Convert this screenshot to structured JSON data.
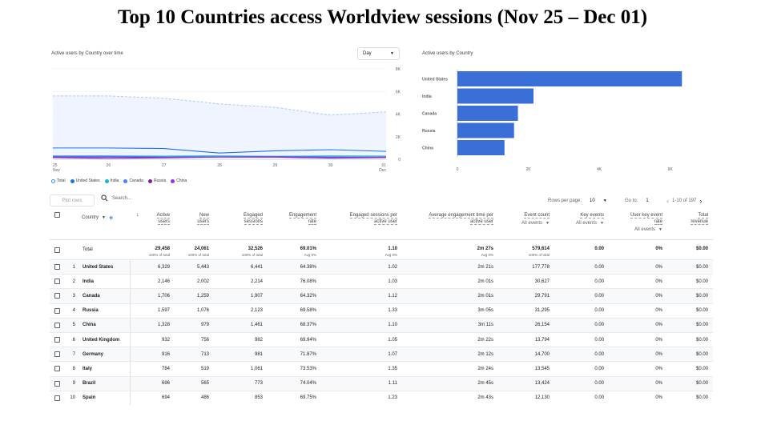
{
  "slide_title": "Top 10 Countries access Worldview sessions (Nov 25 – Dec 01)",
  "line_card": {
    "title": "Active users by Country over time",
    "granularity": "Day",
    "y_ticks": [
      "8K",
      "6K",
      "4K",
      "2K",
      "0"
    ],
    "x_ticks": [
      "25\nNov",
      "26",
      "27",
      "28",
      "29",
      "30",
      "01\nDec"
    ],
    "x_tick_main": [
      "25",
      "26",
      "27",
      "28",
      "29",
      "30",
      "01"
    ],
    "x_tick_sub": [
      "Nov",
      "",
      "",
      "",
      "",
      "",
      "Dec"
    ],
    "legend": [
      {
        "name": "Total",
        "color": "#4285f4",
        "hollow": true
      },
      {
        "name": "United States",
        "color": "#1a73e8",
        "hollow": false
      },
      {
        "name": "India",
        "color": "#12b5cb",
        "hollow": false
      },
      {
        "name": "Canada",
        "color": "#4285f4",
        "hollow": false
      },
      {
        "name": "Russia",
        "color": "#7b1fa2",
        "hollow": false
      },
      {
        "name": "China",
        "color": "#9334e6",
        "hollow": false
      }
    ]
  },
  "chart_data": [
    {
      "type": "area",
      "title": "Active users by Country over time",
      "x": [
        "Nov 25",
        "Nov 26",
        "Nov 27",
        "Nov 28",
        "Nov 29",
        "Nov 30",
        "Dec 01"
      ],
      "ylim": [
        0,
        8000
      ],
      "y_ticks": [
        0,
        2000,
        4000,
        6000,
        8000
      ],
      "series": [
        {
          "name": "Total",
          "color": "#4285f4",
          "values": [
            5600,
            5600,
            5400,
            4900,
            4600,
            3900,
            4200
          ]
        },
        {
          "name": "United States",
          "color": "#1a73e8",
          "values": [
            1000,
            1000,
            950,
            550,
            750,
            850,
            700
          ]
        },
        {
          "name": "India",
          "color": "#12b5cb",
          "values": [
            300,
            300,
            280,
            300,
            260,
            300,
            280
          ]
        },
        {
          "name": "Canada",
          "color": "#4285f4",
          "values": [
            250,
            250,
            200,
            230,
            250,
            220,
            180
          ]
        },
        {
          "name": "Russia",
          "color": "#7b1fa2",
          "values": [
            150,
            80,
            130,
            200,
            190,
            100,
            150
          ]
        },
        {
          "name": "China",
          "color": "#9334e6",
          "values": [
            200,
            190,
            170,
            210,
            210,
            150,
            190
          ]
        }
      ],
      "grid": true,
      "legend": "bottom-left"
    },
    {
      "type": "bar",
      "orientation": "horizontal",
      "title": "Active users by Country",
      "categories": [
        "United States",
        "India",
        "Canada",
        "Russia",
        "China"
      ],
      "values": [
        6329,
        2146,
        1706,
        1597,
        1328
      ],
      "xlim": [
        0,
        7000
      ],
      "x_ticks": [
        "0",
        "2K",
        "4K",
        "6K"
      ],
      "x_tick_values": [
        0,
        2000,
        4000,
        6000
      ],
      "color": "#3b6fd8"
    }
  ],
  "toolbar": {
    "plot_rows": "Plot rows",
    "search_placeholder": "Search...",
    "rows_per_page_label": "Rows per page:",
    "rows_per_page_value": "10",
    "goto_label": "Go to:",
    "goto_value": "1",
    "range_text": "1-10 of 197"
  },
  "table": {
    "country_header": "Country",
    "columns": [
      {
        "line1": "Active",
        "line2": "users",
        "sub": ""
      },
      {
        "line1": "New",
        "line2": "users",
        "sub": ""
      },
      {
        "line1": "Engaged",
        "line2": "sessions",
        "sub": ""
      },
      {
        "line1": "Engagement",
        "line2": "rate",
        "sub": ""
      },
      {
        "line1": "Engaged sessions per",
        "line2": "active user",
        "sub": ""
      },
      {
        "line1": "Average engagement time per",
        "line2": "active user",
        "sub": ""
      },
      {
        "line1": "Event count",
        "line2": "",
        "sub": "All events"
      },
      {
        "line1": "Key events",
        "line2": "",
        "sub": "All events"
      },
      {
        "line1": "User key event",
        "line2": "rate",
        "sub": "All events"
      },
      {
        "line1": "Total",
        "line2": "revenue",
        "sub": ""
      }
    ],
    "total": {
      "label": "Total",
      "values": [
        "29,458",
        "24,061",
        "32,526",
        "69.01%",
        "1.10",
        "2m 27s",
        "579,614",
        "0.00",
        "0%",
        "$0.00"
      ],
      "subs": [
        "100% of total",
        "100% of total",
        "100% of total",
        "Avg 0%",
        "Avg 0%",
        "Avg 0%",
        "100% of total",
        "",
        "",
        ""
      ]
    },
    "rows": [
      {
        "rank": "1",
        "country": "United States",
        "values": [
          "6,329",
          "5,443",
          "6,441",
          "64.38%",
          "1.02",
          "2m 21s",
          "177,778",
          "0.00",
          "0%",
          "$0.00"
        ]
      },
      {
        "rank": "2",
        "country": "India",
        "values": [
          "2,146",
          "2,002",
          "2,214",
          "76.08%",
          "1.03",
          "2m 01s",
          "30,627",
          "0.00",
          "0%",
          "$0.00"
        ]
      },
      {
        "rank": "3",
        "country": "Canada",
        "values": [
          "1,706",
          "1,259",
          "1,907",
          "64.32%",
          "1.12",
          "2m 01s",
          "29,791",
          "0.00",
          "0%",
          "$0.00"
        ]
      },
      {
        "rank": "4",
        "country": "Russia",
        "values": [
          "1,597",
          "1,076",
          "2,123",
          "69.58%",
          "1.33",
          "3m 05s",
          "31,295",
          "0.00",
          "0%",
          "$0.00"
        ]
      },
      {
        "rank": "5",
        "country": "China",
        "values": [
          "1,328",
          "979",
          "1,461",
          "68.37%",
          "1.10",
          "3m 11s",
          "26,154",
          "0.00",
          "0%",
          "$0.00"
        ]
      },
      {
        "rank": "6",
        "country": "United Kingdom",
        "values": [
          "932",
          "756",
          "982",
          "69.94%",
          "1.05",
          "2m 22s",
          "13,794",
          "0.00",
          "0%",
          "$0.00"
        ]
      },
      {
        "rank": "7",
        "country": "Germany",
        "values": [
          "916",
          "713",
          "981",
          "71.87%",
          "1.07",
          "2m 12s",
          "14,700",
          "0.00",
          "0%",
          "$0.00"
        ]
      },
      {
        "rank": "8",
        "country": "Italy",
        "values": [
          "784",
          "519",
          "1,061",
          "73.53%",
          "1.35",
          "2m 24s",
          "13,545",
          "0.00",
          "0%",
          "$0.00"
        ]
      },
      {
        "rank": "9",
        "country": "Brazil",
        "values": [
          "696",
          "565",
          "773",
          "74.04%",
          "1.11",
          "2m 45s",
          "13,424",
          "0.00",
          "0%",
          "$0.00"
        ]
      },
      {
        "rank": "10",
        "country": "Spain",
        "values": [
          "694",
          "486",
          "853",
          "69.75%",
          "1.23",
          "2m 43s",
          "12,130",
          "0.00",
          "0%",
          "$0.00"
        ]
      }
    ]
  }
}
